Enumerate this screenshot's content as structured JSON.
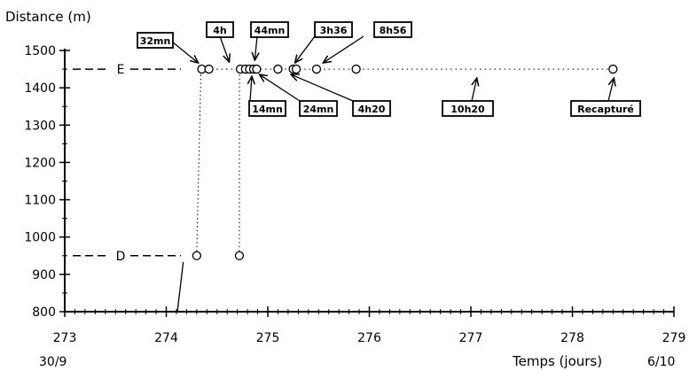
{
  "chart_data": {
    "type": "scatter",
    "title": "",
    "ylabel": "Distance (m)",
    "xlabel": "Temps (jours)",
    "xlim": [
      273,
      279
    ],
    "ylim": [
      800,
      1500
    ],
    "xticks": [
      273,
      274,
      275,
      276,
      277,
      278,
      279
    ],
    "yticks": [
      800,
      900,
      1000,
      1100,
      1200,
      1300,
      1400,
      1500
    ],
    "date_start": "30/9",
    "date_end": "6/10",
    "grid": false,
    "reference_lines": [
      {
        "label": "E",
        "y": 1450
      },
      {
        "label": "D",
        "y": 950
      }
    ],
    "points": [
      {
        "x": 274.3,
        "y": 950
      },
      {
        "x": 274.72,
        "y": 950
      },
      {
        "x": 274.35,
        "y": 1450
      },
      {
        "x": 274.42,
        "y": 1450
      },
      {
        "x": 274.73,
        "y": 1450
      },
      {
        "x": 274.78,
        "y": 1450
      },
      {
        "x": 274.82,
        "y": 1450
      },
      {
        "x": 274.86,
        "y": 1450
      },
      {
        "x": 274.89,
        "y": 1450
      },
      {
        "x": 275.1,
        "y": 1450
      },
      {
        "x": 275.25,
        "y": 1450
      },
      {
        "x": 275.28,
        "y": 1450
      },
      {
        "x": 275.48,
        "y": 1450
      },
      {
        "x": 275.87,
        "y": 1450
      },
      {
        "x": 278.4,
        "y": 1450
      }
    ],
    "annotations": [
      {
        "text": "32mn",
        "x": 274.35,
        "y": 1450
      },
      {
        "text": "4h",
        "x": 274.62,
        "y": 1450
      },
      {
        "text": "44mn",
        "x": 274.88,
        "y": 1450
      },
      {
        "text": "3h36",
        "x": 275.25,
        "y": 1450
      },
      {
        "text": "8h56",
        "x": 275.5,
        "y": 1450
      },
      {
        "text": "14mn",
        "x": 274.86,
        "y": 1450
      },
      {
        "text": "24mn",
        "x": 274.96,
        "y": 1450
      },
      {
        "text": "4h20",
        "x": 275.28,
        "y": 1450
      },
      {
        "text": "10h20",
        "x": 277.05,
        "y": 1450
      },
      {
        "text": "Recapturé",
        "x": 278.4,
        "y": 1450
      },
      {
        "text": "",
        "x": 274.15,
        "y": 950
      }
    ]
  }
}
